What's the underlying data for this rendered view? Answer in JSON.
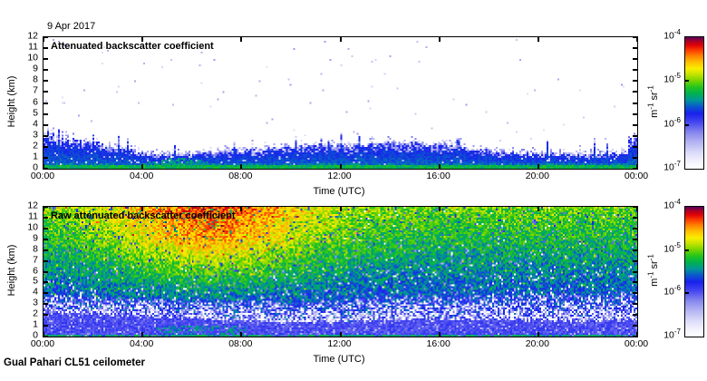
{
  "date_label": "9 Apr 2017",
  "footer_label": "Gual Pahari CL51 ceilometer",
  "colorbar": {
    "ticks": [
      {
        "base": "10",
        "exp": "-4"
      },
      {
        "base": "10",
        "exp": "-5"
      },
      {
        "base": "10",
        "exp": "-6"
      },
      {
        "base": "10",
        "exp": "-7"
      }
    ],
    "unit_parts": [
      {
        "t": "m"
      },
      {
        "s": "-1"
      },
      {
        "t": " sr"
      },
      {
        "s": "-1"
      }
    ],
    "unit_text": "m-1 sr-1",
    "scale_type": "log",
    "scale_min": 1e-07,
    "scale_max": 0.0001
  },
  "colormap_stops": [
    [
      0.0,
      "#ffffff"
    ],
    [
      0.05,
      "#f4f4fe"
    ],
    [
      0.12,
      "#dcdcfa"
    ],
    [
      0.2,
      "#b4b4f2"
    ],
    [
      0.28,
      "#8484ee"
    ],
    [
      0.35,
      "#4848f0"
    ],
    [
      0.42,
      "#1822ec"
    ],
    [
      0.47,
      "#0b55d0"
    ],
    [
      0.52,
      "#00959b"
    ],
    [
      0.57,
      "#00b052"
    ],
    [
      0.62,
      "#22c41e"
    ],
    [
      0.67,
      "#77d400"
    ],
    [
      0.72,
      "#c8e400"
    ],
    [
      0.76,
      "#f8ee00"
    ],
    [
      0.81,
      "#ffc000"
    ],
    [
      0.86,
      "#ff7e00"
    ],
    [
      0.9,
      "#fb3c00"
    ],
    [
      0.94,
      "#e00008"
    ],
    [
      0.97,
      "#a80028"
    ],
    [
      1.0,
      "#58005c"
    ]
  ],
  "chart_data": [
    {
      "type": "heatmap",
      "title": "Attenuated backscatter coefficient",
      "xlabel": "Time (UTC)",
      "ylabel": "Height (km)",
      "x_range_hours": [
        0,
        24
      ],
      "x_tick_labels": [
        "00:00",
        "04:00",
        "08:00",
        "12:00",
        "16:00",
        "20:00",
        "00:00"
      ],
      "y_tick_labels": [
        "0",
        "1",
        "2",
        "3",
        "4",
        "5",
        "6",
        "7",
        "8",
        "9",
        "10",
        "11",
        "12"
      ],
      "ylim_km": [
        0,
        12
      ],
      "colorbar_unit": "m-1 sr-1",
      "colorbar_range": [
        "1e-7",
        "1e-4"
      ],
      "aerosol_layer_top_km": [
        [
          0,
          2.7
        ],
        [
          1,
          2.5
        ],
        [
          2,
          2.2
        ],
        [
          3,
          1.8
        ],
        [
          4,
          1.35
        ],
        [
          5,
          1.1
        ],
        [
          6,
          1.25
        ],
        [
          7,
          1.4
        ],
        [
          8,
          1.55
        ],
        [
          9,
          1.65
        ],
        [
          10,
          1.8
        ],
        [
          11,
          1.9
        ],
        [
          12,
          2.0
        ],
        [
          13,
          2.1
        ],
        [
          14,
          2.2
        ],
        [
          15,
          2.15
        ],
        [
          16,
          2.0
        ],
        [
          17,
          1.8
        ],
        [
          18,
          1.55
        ],
        [
          19,
          1.35
        ],
        [
          20,
          1.25
        ],
        [
          21,
          1.2
        ],
        [
          22,
          1.15
        ],
        [
          23,
          1.2
        ],
        [
          24,
          1.4
        ]
      ],
      "surface_plume": {
        "start_h": 3.3,
        "end_h": 8.0,
        "peak_h": 5.6,
        "max_top_km": 0.95
      },
      "notes": "White above the aerosol layer; blue layer with white speckled top edge; green band in lowest ~0.3 km; green plume up to ~1 km between 04:00 and 08:00."
    },
    {
      "type": "heatmap",
      "title": "Raw attenuated backscatter coefficient",
      "xlabel": "Time (UTC)",
      "ylabel": "Height (km)",
      "x_range_hours": [
        0,
        24
      ],
      "x_tick_labels": [
        "00:00",
        "04:00",
        "08:00",
        "12:00",
        "16:00",
        "20:00",
        "00:00"
      ],
      "y_tick_labels": [
        "0",
        "1",
        "2",
        "3",
        "4",
        "5",
        "6",
        "7",
        "8",
        "9",
        "10",
        "11",
        "12"
      ],
      "ylim_km": [
        0,
        12
      ],
      "colorbar_unit": "m-1 sr-1",
      "colorbar_range": [
        "1e-7",
        "1e-4"
      ],
      "blue_layer_top_km": [
        [
          0,
          2.2
        ],
        [
          2,
          2.0
        ],
        [
          4,
          1.8
        ],
        [
          6,
          1.6
        ],
        [
          8,
          1.35
        ],
        [
          10,
          1.25
        ],
        [
          12,
          1.3
        ],
        [
          14,
          1.45
        ],
        [
          16,
          1.5
        ],
        [
          18,
          1.5
        ],
        [
          20,
          1.45
        ],
        [
          22,
          1.4
        ],
        [
          24,
          1.5
        ]
      ],
      "noise_red_zone": {
        "center_h": 6.8,
        "sigma_h": 4.3,
        "z_start_km": 2.5,
        "amplitude": 0.24
      },
      "notes": "Full-range noisy field: solid blue below ~1.5-2 km with thin green band at surface; white speckle band ~1.5-3.5 km; green noise mid-levels rising to yellow/orange/red at 8-12 km, strongest 03:00-12:00."
    }
  ]
}
